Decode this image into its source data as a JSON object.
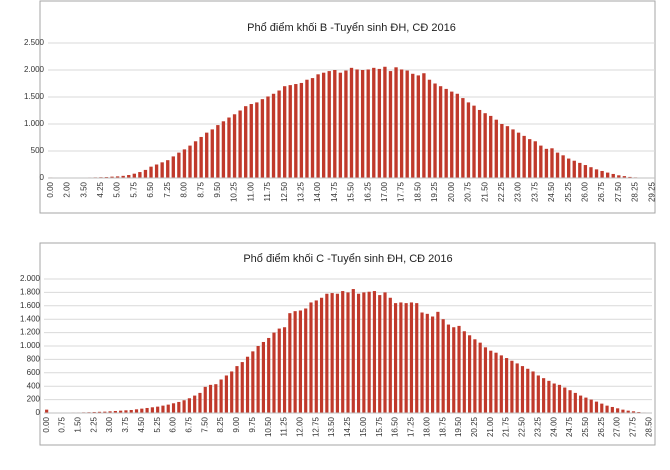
{
  "chart_data": [
    {
      "type": "bar",
      "title": "Phổ điểm khối B -Tuyển sinh ĐH, CĐ 2016",
      "color": "#c0392b",
      "grid": true,
      "ylim": [
        0,
        2500
      ],
      "yticks": [
        0,
        500,
        {
          "value": 1000,
          "label": "1.000"
        },
        {
          "value": 1500,
          "label": "1.500"
        },
        {
          "value": 2000,
          "label": "2.000"
        },
        {
          "value": 2500,
          "label": "2.500"
        }
      ],
      "categories": [
        "0.00",
        null,
        null,
        "2.00",
        null,
        null,
        "3.50",
        null,
        null,
        "4.25",
        null,
        null,
        "5.00",
        null,
        null,
        "5.75",
        null,
        null,
        "6.50",
        null,
        null,
        "7.25",
        null,
        null,
        "8.00",
        null,
        null,
        "8.75",
        null,
        null,
        "9.50",
        null,
        null,
        "10.25",
        null,
        null,
        "11.00",
        null,
        null,
        "11.75",
        null,
        null,
        "12.50",
        null,
        null,
        "13.25",
        null,
        null,
        "14.00",
        null,
        null,
        "14.75",
        null,
        null,
        "15.50",
        null,
        null,
        "16.25",
        null,
        null,
        "17.00",
        null,
        null,
        "17.75",
        null,
        null,
        "18.50",
        null,
        null,
        "19.25",
        null,
        null,
        "20.00",
        null,
        null,
        "20.75",
        null,
        null,
        "21.50",
        null,
        null,
        "22.25",
        null,
        null,
        "23.00",
        null,
        null,
        "23.75",
        null,
        null,
        "24.50",
        null,
        null,
        "25.25",
        null,
        null,
        "26.00",
        null,
        null,
        "26.75",
        null,
        null,
        "27.50",
        null,
        null,
        "28.25",
        null,
        null,
        "29.25"
      ],
      "values": [
        10,
        2,
        3,
        5,
        5,
        8,
        8,
        10,
        12,
        15,
        18,
        25,
        30,
        40,
        55,
        80,
        110,
        150,
        210,
        250,
        290,
        330,
        400,
        470,
        530,
        600,
        680,
        760,
        840,
        900,
        980,
        1050,
        1120,
        1180,
        1250,
        1330,
        1370,
        1400,
        1460,
        1510,
        1560,
        1620,
        1700,
        1720,
        1740,
        1760,
        1820,
        1850,
        1920,
        1950,
        1980,
        2000,
        1950,
        1990,
        2040,
        2010,
        2000,
        2010,
        2040,
        2020,
        2060,
        1980,
        2050,
        2010,
        1990,
        1930,
        1900,
        1940,
        1820,
        1750,
        1700,
        1650,
        1600,
        1560,
        1480,
        1400,
        1340,
        1260,
        1200,
        1150,
        1080,
        1000,
        960,
        900,
        840,
        780,
        720,
        680,
        600,
        540,
        550,
        470,
        420,
        360,
        320,
        280,
        240,
        200,
        160,
        130,
        100,
        75,
        50,
        35,
        20,
        12,
        6,
        3,
        2
      ]
    },
    {
      "type": "bar",
      "title": "Phổ điểm khối C -Tuyển sinh ĐH, CĐ 2016",
      "color": "#c0392b",
      "grid": true,
      "ylim": [
        0,
        2000
      ],
      "yticks": [
        0,
        200,
        400,
        600,
        800,
        {
          "value": 1000,
          "label": "1.000"
        },
        {
          "value": 1200,
          "label": "1.200"
        },
        {
          "value": 1400,
          "label": "1.400"
        },
        {
          "value": 1600,
          "label": "1.600"
        },
        {
          "value": 1800,
          "label": "1.800"
        },
        {
          "value": 2000,
          "label": "2.000"
        }
      ],
      "categories": [
        "0.00",
        null,
        null,
        "0.75",
        null,
        null,
        "1.50",
        null,
        null,
        "2.25",
        null,
        null,
        "3.00",
        null,
        null,
        "3.75",
        null,
        null,
        "4.50",
        null,
        null,
        "5.25",
        null,
        null,
        "6.00",
        null,
        null,
        "6.75",
        null,
        null,
        "7.50",
        null,
        null,
        "8.25",
        null,
        null,
        "9.00",
        null,
        null,
        "9.75",
        null,
        null,
        "10.50",
        null,
        null,
        "11.25",
        null,
        null,
        "12.00",
        null,
        null,
        "12.75",
        null,
        null,
        "13.50",
        null,
        null,
        "14.25",
        null,
        null,
        "15.00",
        null,
        null,
        "15.75",
        null,
        null,
        "16.50",
        null,
        null,
        "17.25",
        null,
        null,
        "18.00",
        null,
        null,
        "18.75",
        null,
        null,
        "19.50",
        null,
        null,
        "20.25",
        null,
        null,
        "21.00",
        null,
        null,
        "21.75",
        null,
        null,
        "22.50",
        null,
        null,
        "23.25",
        null,
        null,
        "24.00",
        null,
        null,
        "24.75",
        null,
        null,
        "25.50",
        null,
        null,
        "26.25",
        null,
        null,
        "27.00",
        null,
        null,
        "27.75",
        null,
        null,
        "28.50"
      ],
      "values": [
        50,
        5,
        5,
        5,
        5,
        8,
        8,
        10,
        12,
        15,
        18,
        20,
        25,
        30,
        35,
        40,
        45,
        55,
        65,
        75,
        85,
        95,
        110,
        125,
        145,
        165,
        190,
        220,
        260,
        300,
        390,
        420,
        430,
        500,
        560,
        620,
        700,
        760,
        840,
        920,
        1000,
        1060,
        1120,
        1200,
        1260,
        1280,
        1490,
        1520,
        1530,
        1560,
        1650,
        1680,
        1720,
        1780,
        1790,
        1780,
        1820,
        1800,
        1850,
        1780,
        1800,
        1810,
        1820,
        1760,
        1800,
        1720,
        1640,
        1650,
        1640,
        1650,
        1640,
        1500,
        1480,
        1440,
        1510,
        1400,
        1320,
        1280,
        1300,
        1220,
        1160,
        1100,
        1050,
        980,
        930,
        900,
        860,
        820,
        780,
        740,
        700,
        660,
        620,
        560,
        520,
        480,
        440,
        420,
        380,
        340,
        300,
        260,
        230,
        200,
        170,
        140,
        110,
        90,
        70,
        50,
        35,
        25,
        15,
        8,
        4
      ]
    }
  ]
}
